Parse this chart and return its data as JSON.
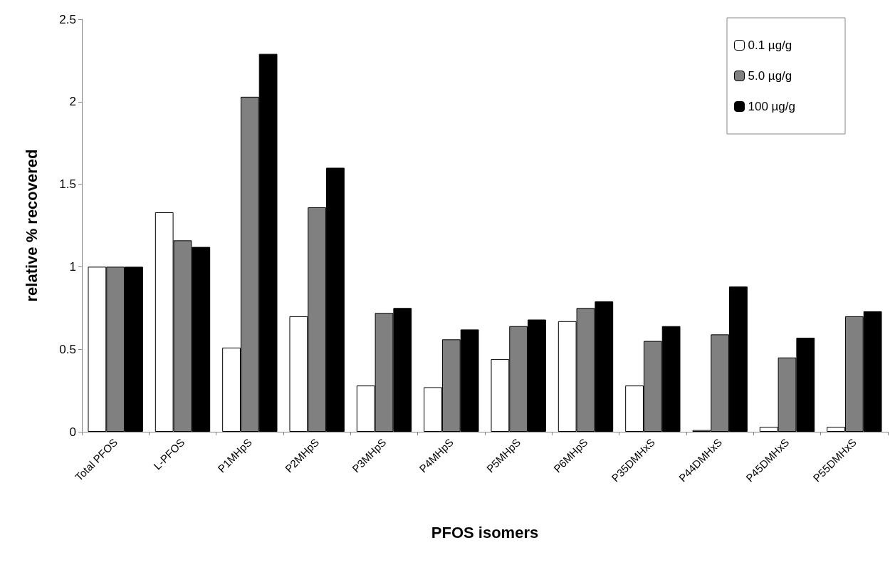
{
  "chart_data": {
    "type": "bar",
    "xlabel": "PFOS isomers",
    "ylabel": "relative % recovered",
    "categories": [
      "Total PFOS",
      "L-PFOS",
      "P1MHpS",
      "P2MHpS",
      "P3MHpS",
      "P4MHpS",
      "P5MHpS",
      "P6MHpS",
      "P35DMHxS",
      "P44DMHxS",
      "P45DMHxS",
      "P55DMHxS"
    ],
    "series": [
      {
        "name": "0.1 µg/g",
        "color": "#ffffff",
        "values": [
          1,
          1.33,
          0.51,
          0.7,
          0.28,
          0.27,
          0.44,
          0.67,
          0.28,
          0.01,
          0.03,
          0.03
        ]
      },
      {
        "name": "5.0 µg/g",
        "color": "#808080",
        "values": [
          1,
          1.16,
          2.03,
          1.36,
          0.72,
          0.56,
          0.64,
          0.75,
          0.55,
          0.59,
          0.45,
          0.7
        ]
      },
      {
        "name": "100 µg/g",
        "color": "#000000",
        "values": [
          1,
          1.12,
          2.29,
          1.6,
          0.75,
          0.62,
          0.68,
          0.79,
          0.64,
          0.88,
          0.57,
          0.73
        ]
      }
    ],
    "ylim": [
      0,
      2.5
    ],
    "yticks": [
      0,
      0.5,
      1,
      1.5,
      2,
      2.5
    ],
    "grid": false,
    "legend": "top right"
  }
}
